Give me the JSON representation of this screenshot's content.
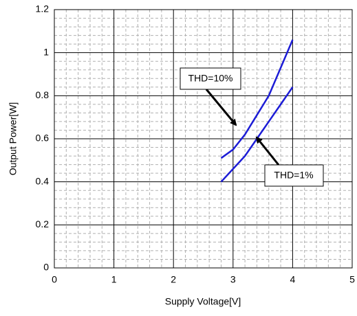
{
  "chart_data": {
    "type": "line",
    "xlabel": "Supply Voltage[V]",
    "ylabel": "Output Power[W]",
    "xlim": [
      0,
      5
    ],
    "xticks": [
      0,
      1,
      2,
      3,
      4,
      5
    ],
    "ylim": [
      0,
      1.2
    ],
    "yticks": [
      0,
      0.2,
      0.4,
      0.6,
      0.8,
      1,
      1.2
    ],
    "grid": true,
    "minor_grid": true,
    "series": [
      {
        "name": "THD=10%",
        "color": "#1c1cd6",
        "x": [
          2.8,
          3.0,
          3.2,
          3.4,
          3.6,
          3.8,
          4.0
        ],
        "values": [
          0.51,
          0.55,
          0.62,
          0.71,
          0.8,
          0.93,
          1.06
        ]
      },
      {
        "name": "THD=1%",
        "color": "#1c1cd6",
        "x": [
          2.8,
          3.0,
          3.2,
          3.4,
          3.6,
          3.8,
          4.0
        ],
        "values": [
          0.4,
          0.46,
          0.52,
          0.6,
          0.68,
          0.76,
          0.84
        ]
      }
    ]
  }
}
